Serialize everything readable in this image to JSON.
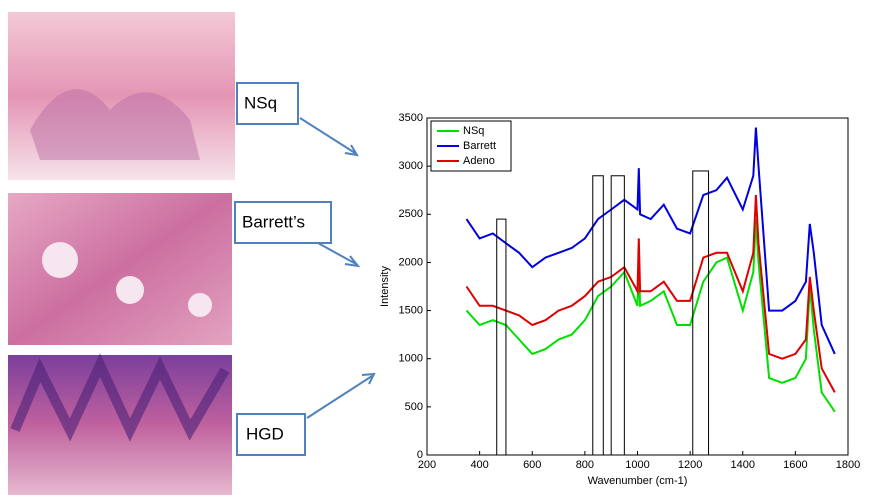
{
  "callouts": [
    "NSq",
    "Barrett’s",
    "HGD"
  ],
  "chart_data": {
    "type": "line",
    "xlabel": "Wavenumber (cm-1)",
    "ylabel": "Intensity",
    "xlim": [
      200,
      1800
    ],
    "xticks": [
      200,
      400,
      600,
      800,
      1000,
      1200,
      1400,
      1600,
      1800
    ],
    "ylim": [
      0,
      3500
    ],
    "yticks": [
      0,
      500,
      1000,
      1500,
      2000,
      2500,
      3000,
      3500
    ],
    "legend": "top-left",
    "x": [
      350,
      400,
      450,
      500,
      550,
      600,
      650,
      700,
      750,
      800,
      850,
      900,
      950,
      1000,
      1005,
      1010,
      1050,
      1100,
      1150,
      1200,
      1250,
      1300,
      1340,
      1400,
      1440,
      1450,
      1460,
      1500,
      1550,
      1600,
      1640,
      1655,
      1670,
      1700,
      1750
    ],
    "series": [
      {
        "name": "NSq",
        "color": "#00e000",
        "values": [
          1500,
          1350,
          1400,
          1350,
          1200,
          1050,
          1100,
          1200,
          1250,
          1400,
          1650,
          1750,
          1900,
          1550,
          2000,
          1550,
          1600,
          1700,
          1350,
          1350,
          1800,
          2000,
          2050,
          1500,
          1900,
          2450,
          2000,
          800,
          750,
          800,
          1000,
          1750,
          1300,
          650,
          450
        ]
      },
      {
        "name": "Barrett",
        "color": "#0000e0",
        "values": [
          2450,
          2250,
          2300,
          2200,
          2100,
          1950,
          2050,
          2100,
          2150,
          2250,
          2450,
          2550,
          2650,
          2550,
          2980,
          2500,
          2450,
          2600,
          2350,
          2300,
          2700,
          2750,
          2880,
          2550,
          2900,
          3400,
          3000,
          1500,
          1500,
          1600,
          1800,
          2400,
          2100,
          1350,
          1050
        ]
      },
      {
        "name": "Adeno",
        "color": "#e00000",
        "values": [
          1750,
          1550,
          1550,
          1500,
          1450,
          1350,
          1400,
          1500,
          1550,
          1650,
          1800,
          1850,
          1950,
          1700,
          2250,
          1700,
          1700,
          1800,
          1600,
          1600,
          2050,
          2100,
          2100,
          1700,
          2100,
          2700,
          2200,
          1050,
          1000,
          1050,
          1200,
          1850,
          1500,
          900,
          650
        ]
      }
    ],
    "bands": [
      {
        "x": [
          465,
          500
        ],
        "top": 2450
      },
      {
        "x": [
          830,
          870
        ],
        "top": 2900
      },
      {
        "x": [
          900,
          950
        ],
        "top": 2900
      },
      {
        "x": [
          1210,
          1270
        ],
        "top": 2950
      }
    ]
  }
}
